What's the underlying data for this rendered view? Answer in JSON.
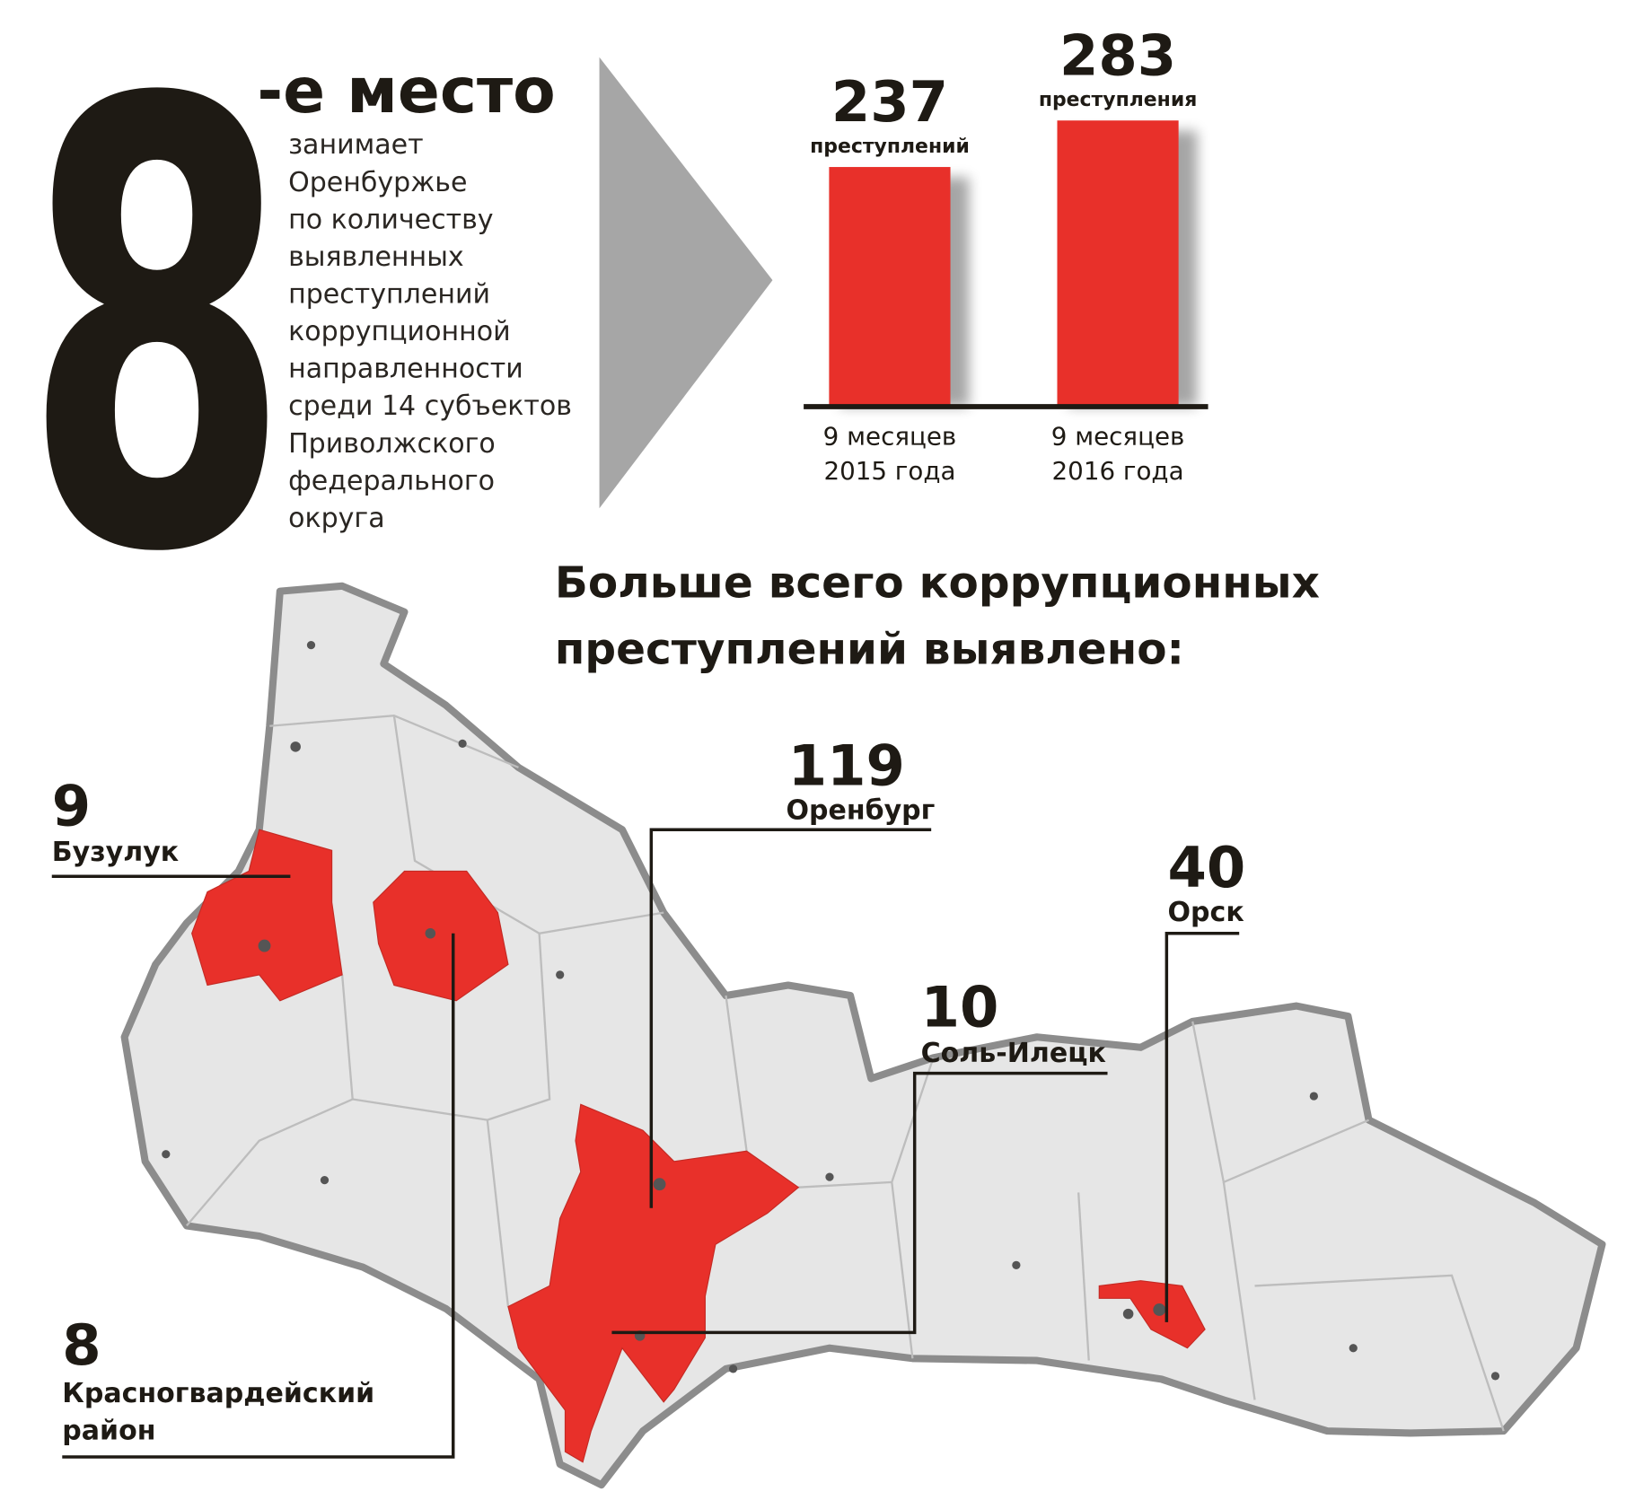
{
  "headline": {
    "rank": "8",
    "rank_suffix": "-е место",
    "description": "занимает\nОренбуржье\nпо количеству\nвыявленных\nпреступлений\nкоррупционной\nнаправленности\nсреди 14 субъектов\nПриволжского\nфедерального\nокруга"
  },
  "chart_data": {
    "type": "bar",
    "categories": [
      "9 месяцев\n2015 года",
      "9 месяцев\n2016 года"
    ],
    "values": [
      237,
      283
    ],
    "annotations": [
      "преступлений",
      "преступления"
    ],
    "color": "#e8302a"
  },
  "map": {
    "title": "Больше всего коррупционных\nпреступлений выявлено:",
    "districts": [
      {
        "value": 9,
        "name": "Бузулук"
      },
      {
        "value": 8,
        "name": "Красногвардейский\nрайон"
      },
      {
        "value": 119,
        "name": "Оренбург"
      },
      {
        "value": 10,
        "name": "Соль-Илецк"
      },
      {
        "value": 40,
        "name": "Орск"
      }
    ]
  }
}
